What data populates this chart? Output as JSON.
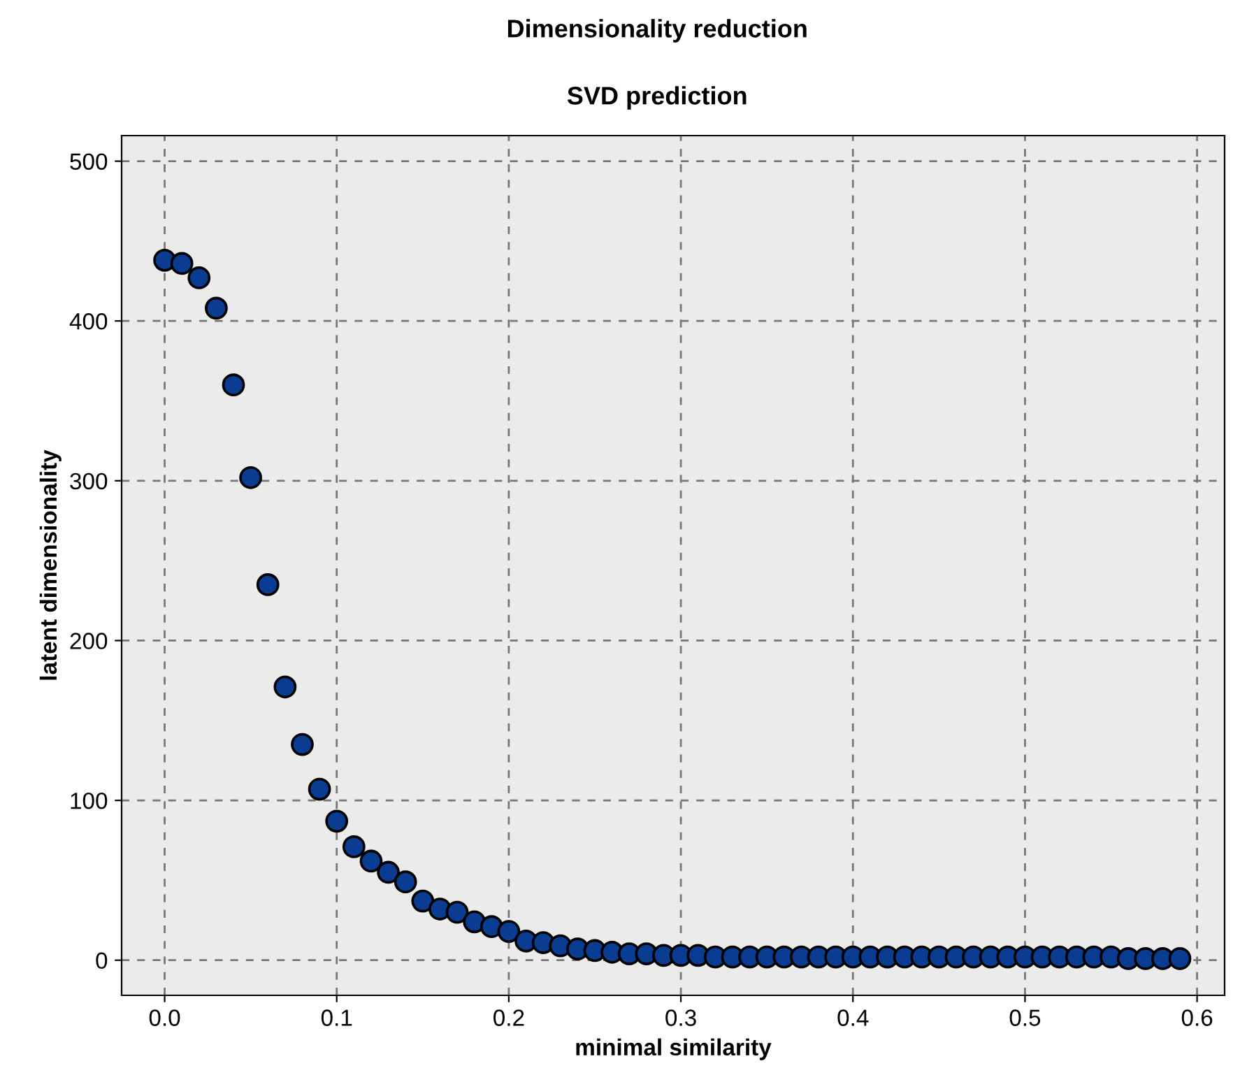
{
  "chart_data": {
    "type": "scatter",
    "title": "Dimensionality reduction",
    "subtitle": "SVD prediction",
    "xlabel": "minimal similarity",
    "ylabel": "latent dimensionality",
    "x": [
      0,
      0.01,
      0.02,
      0.03,
      0.04,
      0.05,
      0.06,
      0.07,
      0.08,
      0.09,
      0.1,
      0.11,
      0.12,
      0.13,
      0.14,
      0.15,
      0.16,
      0.17,
      0.18,
      0.19,
      0.2,
      0.21,
      0.22,
      0.23,
      0.24,
      0.25,
      0.26,
      0.27,
      0.28,
      0.29,
      0.3,
      0.31,
      0.32,
      0.33,
      0.34,
      0.35,
      0.36,
      0.37,
      0.38,
      0.39,
      0.4,
      0.41,
      0.42,
      0.43,
      0.44,
      0.45,
      0.46,
      0.47,
      0.48,
      0.49,
      0.5,
      0.51,
      0.52,
      0.53,
      0.54,
      0.55,
      0.56,
      0.57,
      0.58,
      0.59
    ],
    "series": [
      {
        "color": "#0a3d91",
        "values": [
          438,
          436,
          427,
          408,
          360,
          302,
          235,
          171,
          135,
          107,
          87,
          71,
          62,
          55,
          49,
          37,
          32,
          30,
          24,
          21,
          18,
          12,
          11,
          9,
          7,
          6,
          5,
          4,
          4,
          3,
          3,
          3,
          2,
          2,
          2,
          2,
          2,
          2,
          2,
          2,
          2,
          2,
          2,
          2,
          2,
          2,
          2,
          2,
          2,
          2,
          2,
          2,
          2,
          2,
          2,
          2,
          1,
          1,
          1,
          1
        ]
      }
    ],
    "xlim": [
      -0.025,
      0.616
    ],
    "ylim": [
      -22,
      516
    ],
    "xticks": [
      {
        "value": 0,
        "label": "0.0"
      },
      0.1,
      0.2,
      0.3,
      0.4,
      0.5,
      0.6
    ],
    "yticks": [
      0,
      100,
      200,
      300,
      400,
      500
    ],
    "grid": true,
    "marker": "circle",
    "legend": false
  }
}
